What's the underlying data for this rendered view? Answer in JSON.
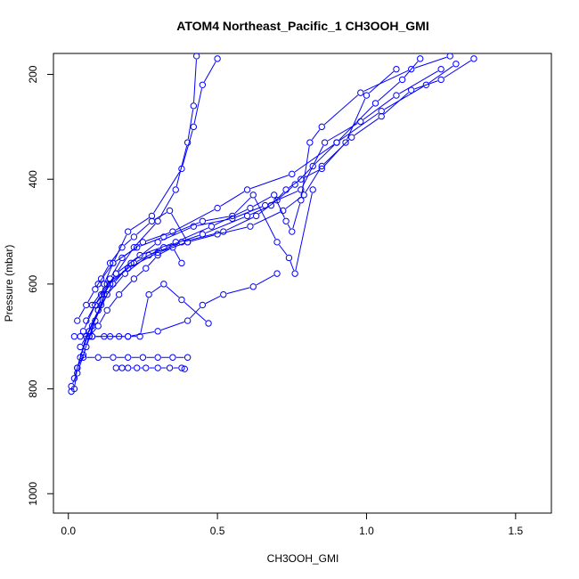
{
  "chart_data": {
    "type": "scatter",
    "title": "ATOM4 Northeast_Pacific_1 CH3OOH_GMI",
    "xlabel": "CH3OOH_GMI",
    "ylabel": "Pressure (mbar)",
    "xlim": [
      -0.05,
      1.62
    ],
    "ylim": [
      1037,
      160
    ],
    "y_reversed": true,
    "x_ticks": [
      0.0,
      0.5,
      1.0,
      1.5
    ],
    "x_tick_labels": [
      "0.0",
      "0.5",
      "1.0",
      "1.5"
    ],
    "y_ticks": [
      200,
      400,
      600,
      800,
      1000
    ],
    "y_tick_labels": [
      "200",
      "400",
      "600",
      "800",
      "1000"
    ],
    "marker": "open-circle",
    "color": "#0000ff",
    "grid": false,
    "series": [
      {
        "x": [
          0.01,
          0.02,
          0.03,
          0.05,
          0.07,
          0.1,
          0.12,
          0.15,
          0.2,
          0.28,
          0.38,
          0.42,
          0.45,
          0.5
        ],
        "y": [
          805,
          800,
          760,
          735,
          700,
          650,
          600,
          560,
          500,
          470,
          380,
          300,
          220,
          170
        ]
      },
      {
        "x": [
          0.01,
          0.03,
          0.06,
          0.09,
          0.12,
          0.16,
          0.22,
          0.3,
          0.36,
          0.4,
          0.42,
          0.43
        ],
        "y": [
          795,
          770,
          720,
          670,
          620,
          580,
          530,
          480,
          420,
          330,
          260,
          165
        ]
      },
      {
        "x": [
          0.02,
          0.04,
          0.07,
          0.11,
          0.14,
          0.18,
          0.25,
          0.35,
          0.5,
          0.6,
          0.75,
          0.9,
          1.05,
          1.2,
          1.3
        ],
        "y": [
          780,
          740,
          690,
          640,
          590,
          550,
          520,
          500,
          455,
          420,
          390,
          330,
          270,
          220,
          180
        ]
      },
      {
        "x": [
          0.03,
          0.06,
          0.1,
          0.15,
          0.21,
          0.3,
          0.42,
          0.55,
          0.66,
          0.78,
          0.86,
          0.98,
          1.1,
          1.25
        ],
        "y": [
          760,
          700,
          650,
          600,
          560,
          520,
          490,
          475,
          450,
          420,
          330,
          290,
          240,
          190
        ]
      },
      {
        "x": [
          0.04,
          0.08,
          0.13,
          0.19,
          0.27,
          0.38,
          0.52,
          0.63,
          0.7,
          0.76,
          0.82,
          0.9,
          1.03,
          1.12,
          1.18
        ],
        "y": [
          720,
          680,
          620,
          580,
          545,
          520,
          500,
          470,
          440,
          410,
          375,
          330,
          255,
          210,
          170
        ]
      },
      {
        "x": [
          0.05,
          0.09,
          0.14,
          0.22,
          0.32,
          0.45,
          0.6,
          0.68,
          0.73,
          0.78,
          0.85,
          0.93,
          1.0,
          1.1
        ],
        "y": [
          690,
          640,
          600,
          560,
          530,
          505,
          470,
          450,
          420,
          400,
          380,
          330,
          240,
          190
        ]
      },
      {
        "x": [
          0.06,
          0.11,
          0.16,
          0.24,
          0.36,
          0.48,
          0.61,
          0.69,
          0.73,
          0.75,
          0.78,
          0.81,
          0.85,
          0.98,
          1.15,
          1.28
        ],
        "y": [
          670,
          620,
          580,
          545,
          520,
          490,
          455,
          430,
          480,
          500,
          440,
          330,
          300,
          235,
          190,
          165
        ]
      },
      {
        "x": [
          0.08,
          0.13,
          0.2,
          0.3,
          0.4,
          0.5,
          0.61,
          0.72,
          0.79,
          0.85,
          0.95,
          1.05,
          1.15,
          1.25,
          1.36
        ],
        "y": [
          640,
          600,
          570,
          540,
          520,
          505,
          490,
          460,
          430,
          375,
          320,
          280,
          230,
          210,
          170
        ]
      },
      {
        "x": [
          0.1,
          0.15,
          0.23,
          0.32,
          0.45,
          0.55,
          0.62,
          0.7,
          0.74,
          0.76,
          0.82
        ],
        "y": [
          600,
          560,
          530,
          510,
          480,
          470,
          430,
          520,
          550,
          580,
          420
        ]
      },
      {
        "x": [
          0.02,
          0.04,
          0.08,
          0.14,
          0.2,
          0.3,
          0.4,
          0.45,
          0.52,
          0.62,
          0.7
        ],
        "y": [
          700,
          700,
          700,
          700,
          700,
          690,
          670,
          640,
          620,
          605,
          580
        ]
      },
      {
        "x": [
          0.05,
          0.1,
          0.15,
          0.2,
          0.25,
          0.3,
          0.35,
          0.4
        ],
        "y": [
          740,
          740,
          740,
          740,
          740,
          740,
          740,
          740
        ]
      },
      {
        "x": [
          0.16,
          0.18,
          0.2,
          0.23,
          0.26,
          0.3,
          0.34,
          0.38,
          0.39
        ],
        "y": [
          760,
          760,
          760,
          760,
          760,
          760,
          760,
          760,
          762
        ]
      },
      {
        "x": [
          0.08,
          0.12,
          0.17,
          0.2,
          0.24,
          0.27,
          0.32,
          0.38,
          0.47
        ],
        "y": [
          700,
          700,
          700,
          700,
          700,
          620,
          600,
          630,
          675
        ]
      },
      {
        "x": [
          0.03,
          0.06,
          0.09,
          0.11,
          0.14,
          0.18,
          0.22,
          0.28,
          0.34,
          0.4
        ],
        "y": [
          670,
          640,
          610,
          590,
          560,
          530,
          510,
          480,
          460,
          520
        ]
      },
      {
        "x": [
          0.07,
          0.1,
          0.13,
          0.17,
          0.22,
          0.26,
          0.3,
          0.35,
          0.38
        ],
        "y": [
          700,
          680,
          650,
          620,
          590,
          570,
          545,
          530,
          560
        ]
      }
    ]
  }
}
